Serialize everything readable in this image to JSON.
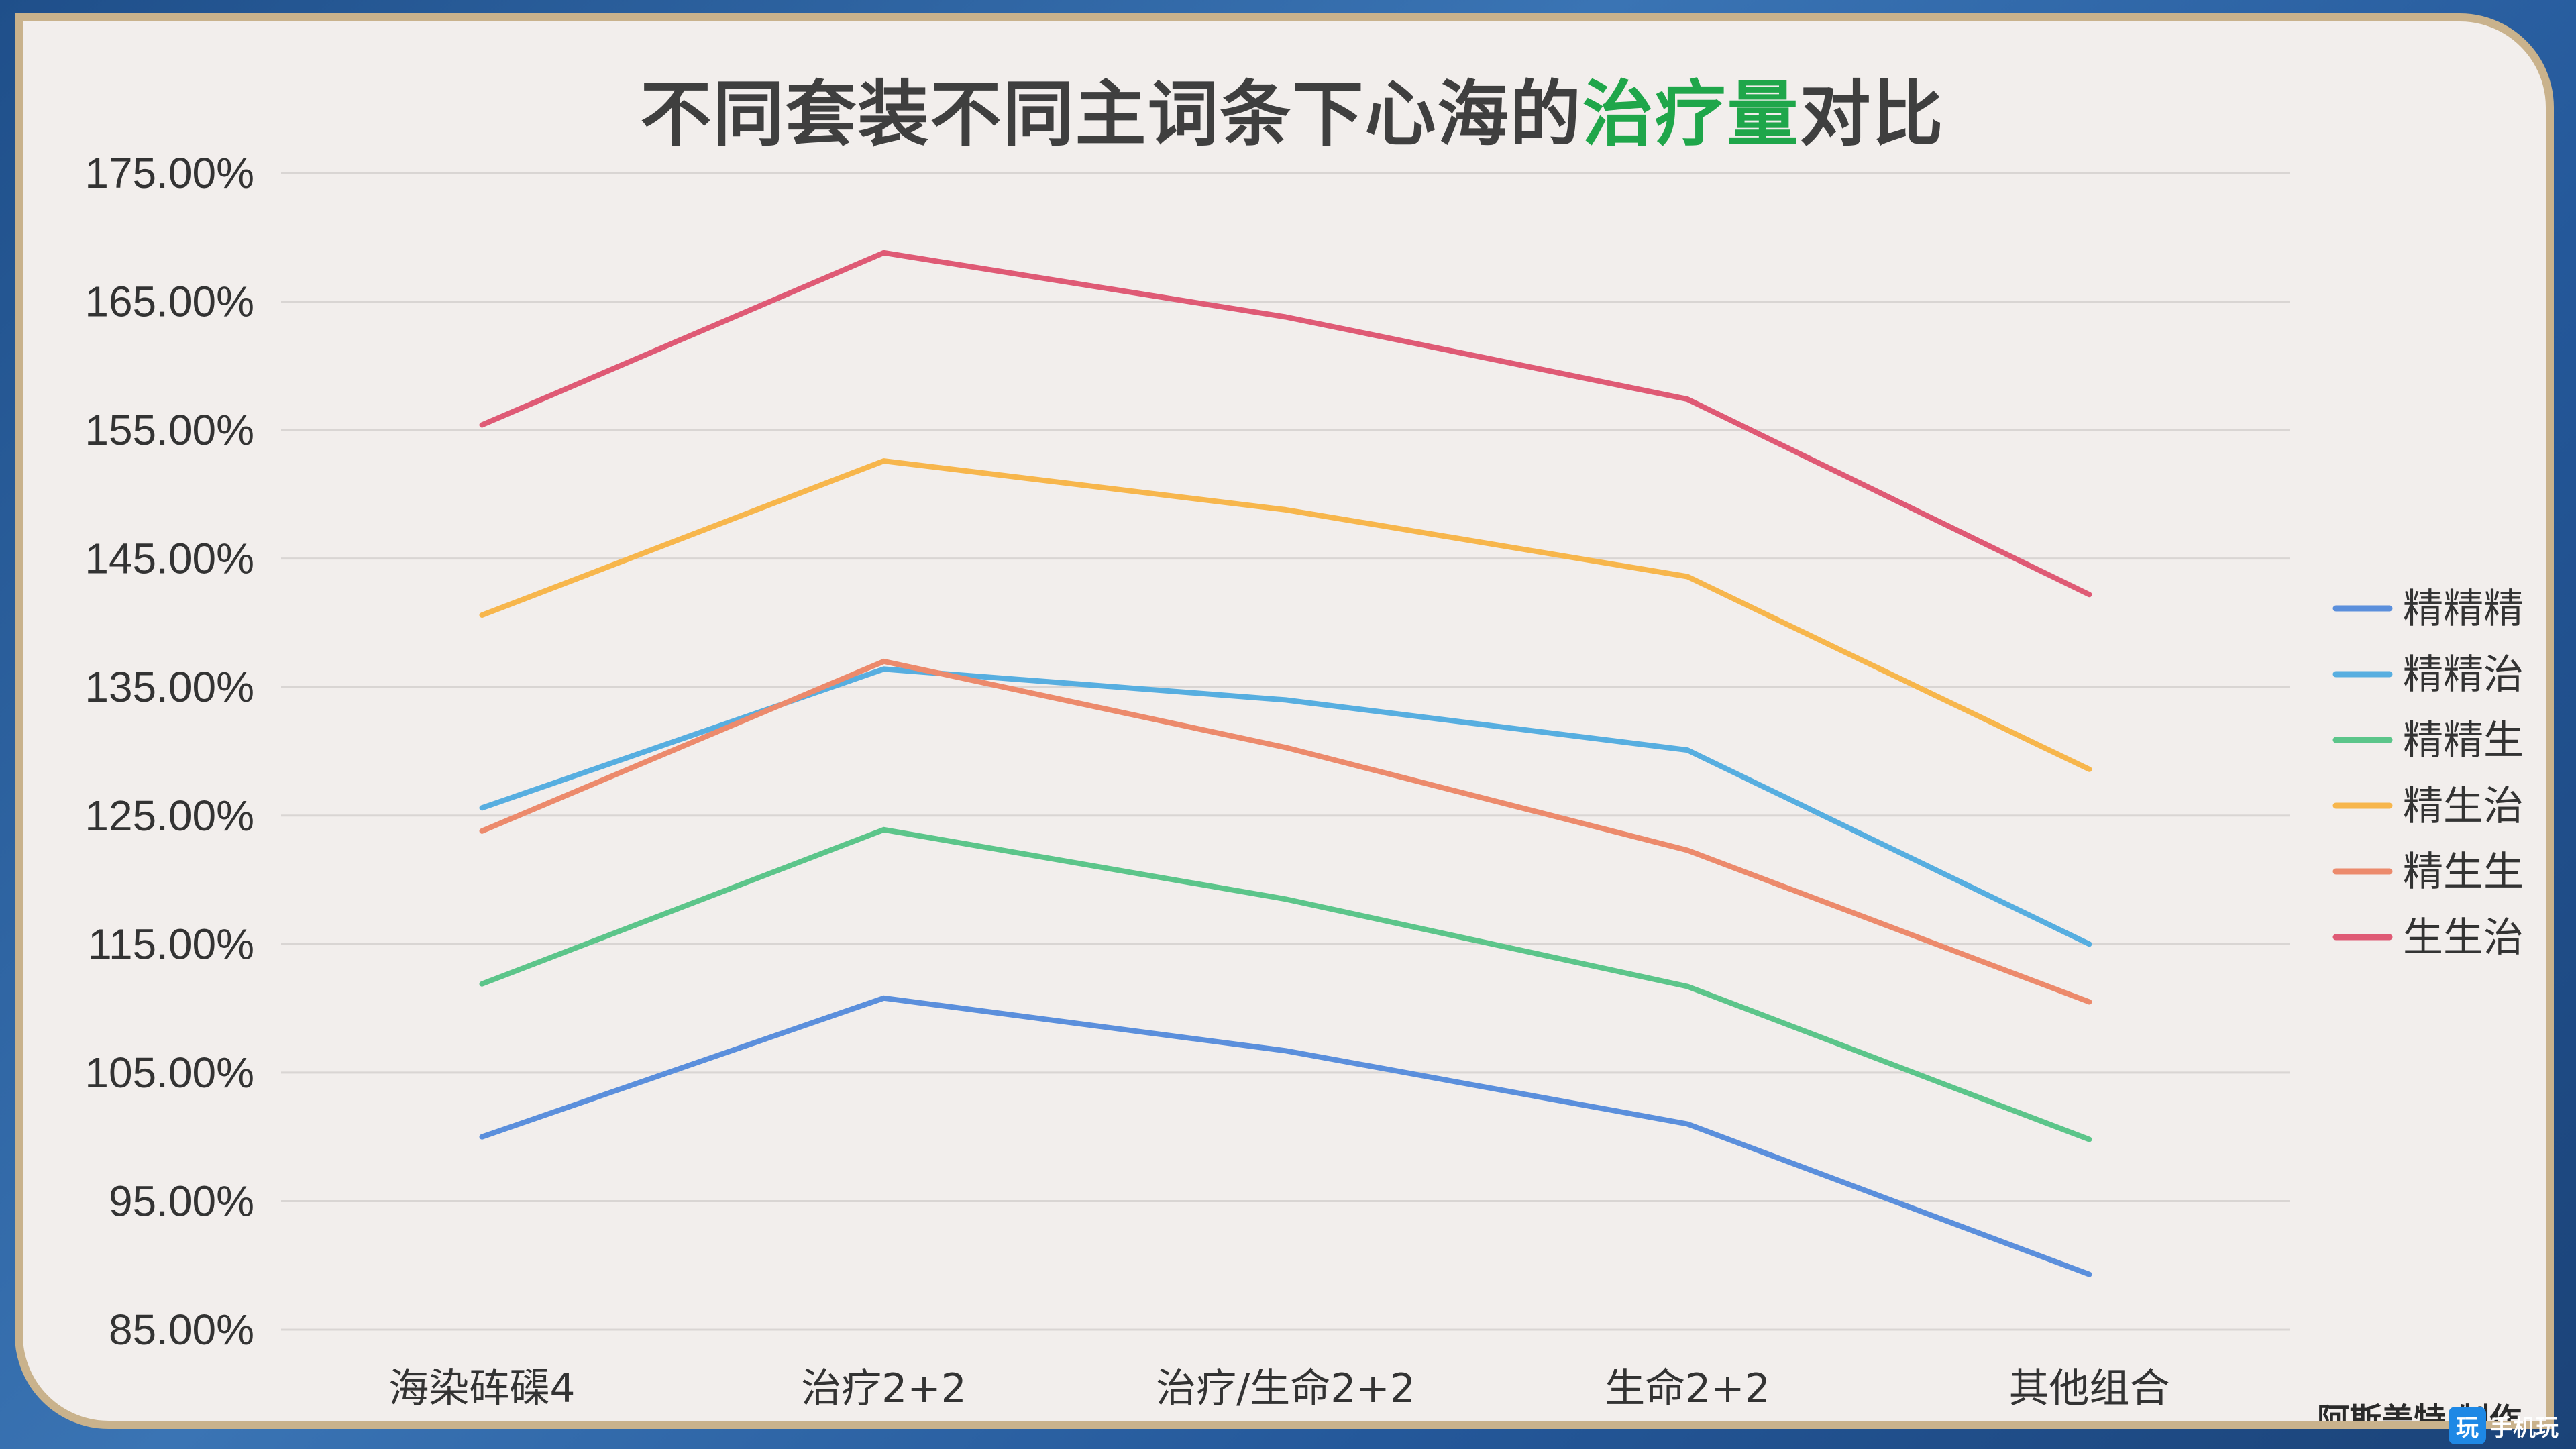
{
  "title": {
    "prefix": "不同套装不同主词条下心海的",
    "highlight": "治疗量",
    "suffix": "对比",
    "highlight_color": "#1fa64a"
  },
  "credit": "阿斯盖特 制作",
  "watermark": {
    "icon_text": "玩",
    "text": "手机玩"
  },
  "chart_data": {
    "type": "line",
    "categories": [
      "海染砗磲4",
      "治疗2+2",
      "治疗/生命2+2",
      "生命2+2",
      "其他组合"
    ],
    "ylim": [
      85,
      175
    ],
    "yticks": [
      85,
      95,
      105,
      115,
      125,
      135,
      145,
      155,
      165,
      175
    ],
    "ytick_labels": [
      "85.00%",
      "95.00%",
      "105.00%",
      "115.00%",
      "125.00%",
      "135.00%",
      "145.00%",
      "155.00%",
      "165.00%",
      "175.00%"
    ],
    "grid": true,
    "legend_position": "right",
    "series": [
      {
        "name": "精精精",
        "color": "#5b8fdc",
        "values": [
          100.0,
          110.8,
          106.7,
          101.0,
          89.3
        ]
      },
      {
        "name": "精精治",
        "color": "#57aee0",
        "values": [
          125.6,
          136.4,
          134.0,
          130.1,
          115.0
        ]
      },
      {
        "name": "精精生",
        "color": "#5cc58a",
        "values": [
          111.9,
          123.9,
          118.5,
          111.7,
          99.8
        ]
      },
      {
        "name": "精生治",
        "color": "#f7b64c",
        "values": [
          140.6,
          152.6,
          148.8,
          143.6,
          128.6
        ]
      },
      {
        "name": "精生生",
        "color": "#ec8a6c",
        "values": [
          123.8,
          137.0,
          130.3,
          122.3,
          110.5
        ]
      },
      {
        "name": "生生治",
        "color": "#df5a75",
        "values": [
          155.4,
          168.8,
          163.8,
          157.4,
          142.2
        ]
      }
    ]
  }
}
